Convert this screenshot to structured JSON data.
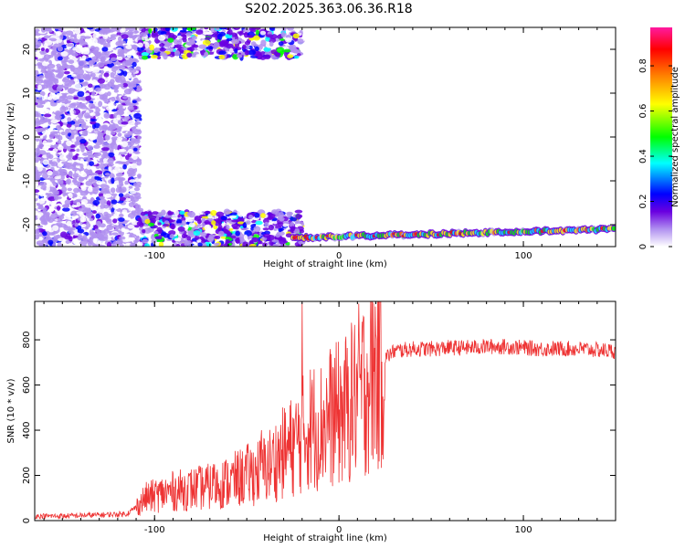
{
  "title": "S202.2025.363.06.36.R18",
  "chart_data": [
    {
      "type": "heatmap",
      "xlabel": "Height of straight line (km)",
      "ylabel": "Frequency (Hz)",
      "xlim": [
        -165,
        150
      ],
      "ylim": [
        -25,
        25
      ],
      "x_ticks": [
        -100,
        0,
        100
      ],
      "y_ticks": [
        -20,
        -10,
        0,
        10,
        20
      ],
      "colorbar": {
        "label": "Normalized spectral amplitude",
        "range": [
          0,
          0.97
        ],
        "ticks": [
          0,
          0.2,
          0.4,
          0.6,
          0.8
        ],
        "colors": [
          "#ffffff",
          "#b090f0",
          "#6a00e0",
          "#0000ff",
          "#00ffff",
          "#00ff00",
          "#ffff00",
          "#ff8000",
          "#ff0000",
          "#ff1aa0"
        ]
      },
      "features": [
        {
          "region": "broadband noise",
          "x": [
            -165,
            -108
          ],
          "y": [
            -25,
            25
          ],
          "amplitude": 0.15
        },
        {
          "region": "upper band patches",
          "x": [
            -108,
            -20
          ],
          "y": [
            18,
            25
          ],
          "amplitude": 0.3
        },
        {
          "region": "lower band patches",
          "x": [
            -108,
            -20
          ],
          "y": [
            -25,
            -17
          ],
          "amplitude": 0.3
        },
        {
          "region": "narrow-band signal",
          "x": [
            -25,
            150
          ],
          "y_start": -23,
          "y_end": -21,
          "amplitude": 0.55
        }
      ]
    },
    {
      "type": "line",
      "xlabel": "Height of straight line (km)",
      "ylabel": "SNR (10 * v/v)",
      "xlim": [
        -165,
        150
      ],
      "ylim": [
        0,
        970
      ],
      "x_ticks": [
        -100,
        0,
        100
      ],
      "y_ticks": [
        0,
        200,
        400,
        600,
        800
      ],
      "color": "#ee3333",
      "series": [
        {
          "x": [
            -165,
            -150,
            -130,
            -115,
            -110,
            -105,
            -100,
            -90,
            -80,
            -70,
            -60,
            -50,
            -40,
            -30,
            -25,
            -20,
            -15,
            -10,
            -5,
            0,
            5,
            10,
            15,
            20,
            25,
            30,
            40,
            50,
            60,
            70,
            80,
            90,
            100,
            110,
            120,
            130,
            140,
            150
          ],
          "values": [
            20,
            20,
            25,
            30,
            60,
            100,
            110,
            130,
            140,
            150,
            170,
            200,
            230,
            300,
            330,
            380,
            420,
            420,
            460,
            470,
            500,
            560,
            620,
            680,
            720,
            750,
            760,
            760,
            765,
            765,
            770,
            770,
            765,
            760,
            760,
            760,
            755,
            750
          ]
        }
      ],
      "spikes": [
        {
          "x": -20,
          "y": 965
        },
        {
          "x": 7,
          "y": 830
        },
        {
          "x": -68,
          "y": 250
        },
        {
          "x": -42,
          "y": 400
        }
      ]
    }
  ]
}
